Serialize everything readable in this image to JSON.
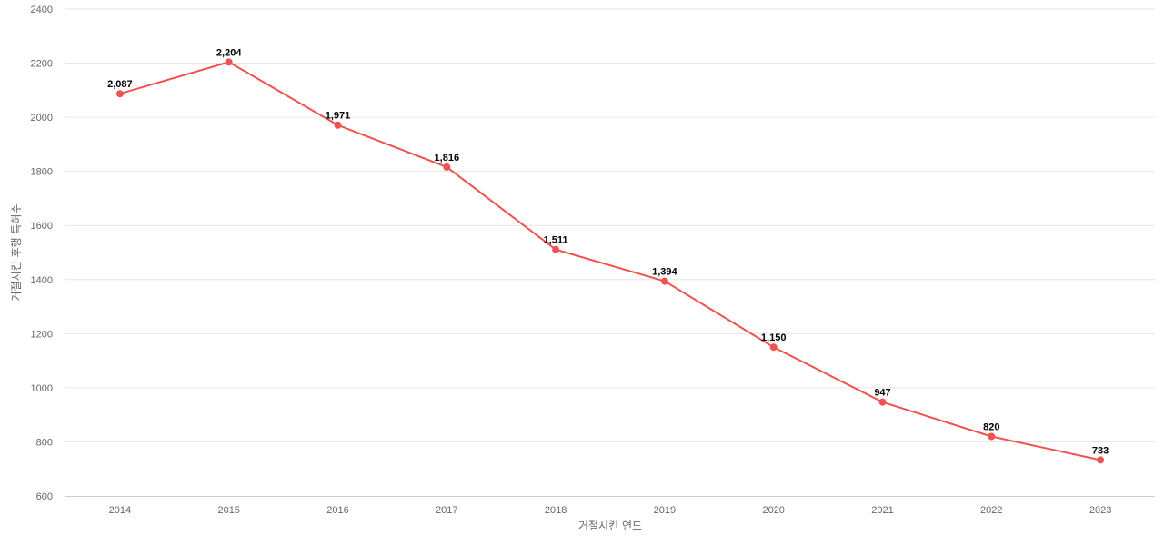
{
  "chart_data": {
    "type": "line",
    "title": "",
    "xlabel": "거절시킨 연도",
    "ylabel": "거절시킨 후행 특허수",
    "categories": [
      "2014",
      "2015",
      "2016",
      "2017",
      "2018",
      "2019",
      "2020",
      "2021",
      "2022",
      "2023"
    ],
    "series": [
      {
        "values": [
          2087,
          2204,
          1971,
          1816,
          1511,
          1394,
          1150,
          947,
          820,
          733
        ],
        "data_labels": [
          "2,087",
          "2,204",
          "1,971",
          "1,816",
          "1,511",
          "1,394",
          "1,150",
          "947",
          "820",
          "733"
        ],
        "color": "#ef5350"
      }
    ],
    "ylim": [
      600,
      2400
    ],
    "yticks": [
      "600",
      "800",
      "1000",
      "1200",
      "1400",
      "1600",
      "1800",
      "2000",
      "2200",
      "2400"
    ],
    "grid": true,
    "legend": "none"
  }
}
